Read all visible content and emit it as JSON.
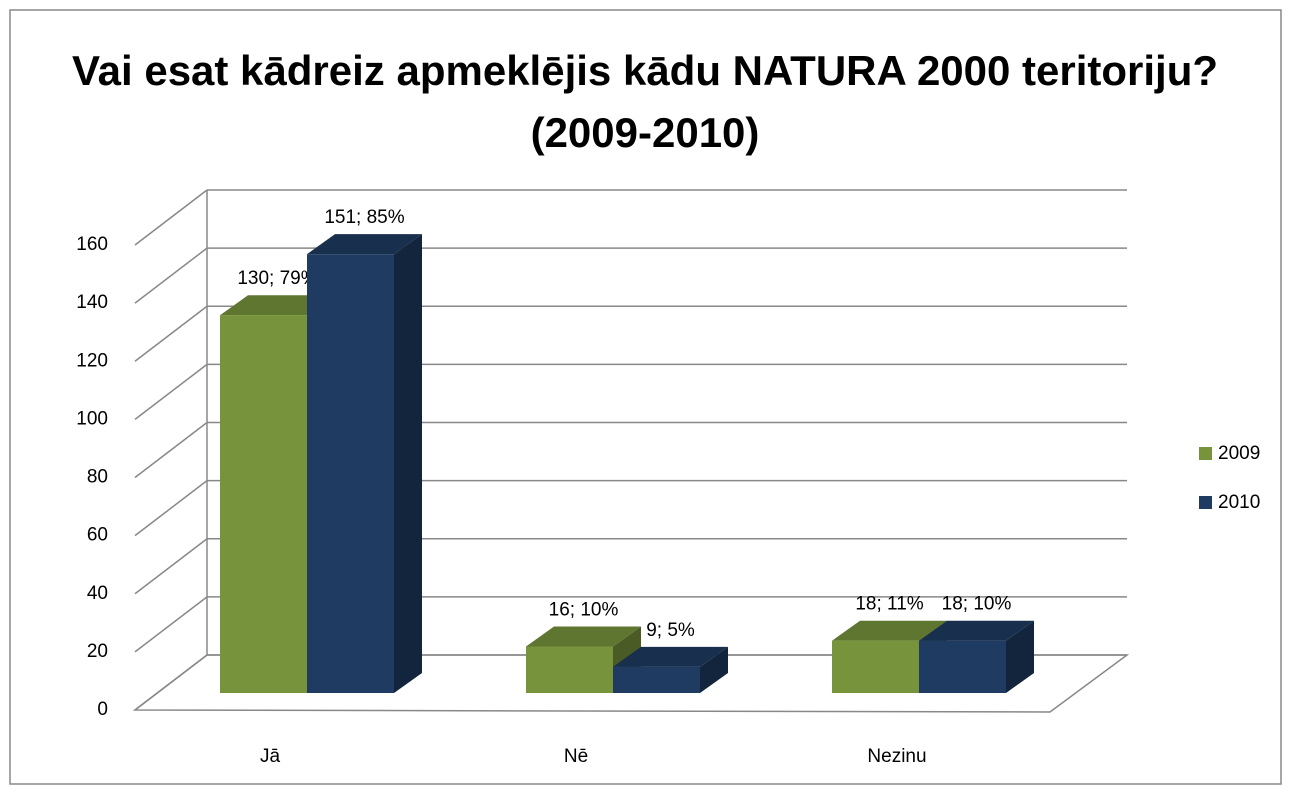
{
  "chart_data": {
    "type": "bar3d",
    "title": "Vai esat kādreiz apmeklējis kādu NATURA 2000 teritoriju? (2009-2010)",
    "categories": [
      "Jā",
      "Nē",
      "Nezinu"
    ],
    "series": [
      {
        "name": "2009",
        "color": "#77933c",
        "values": [
          130,
          16,
          18
        ],
        "value_labels": [
          "130; 79%",
          "16; 10%",
          "18; 11%"
        ]
      },
      {
        "name": "2010",
        "color": "#1f3b61",
        "values": [
          151,
          9,
          18
        ],
        "value_labels": [
          "151; 85%",
          "9; 5%",
          "18; 10%"
        ]
      }
    ],
    "ylim": [
      0,
      160
    ],
    "yticks": [
      0,
      20,
      40,
      60,
      80,
      100,
      120,
      140,
      160
    ],
    "grid": true,
    "legend": "right"
  }
}
